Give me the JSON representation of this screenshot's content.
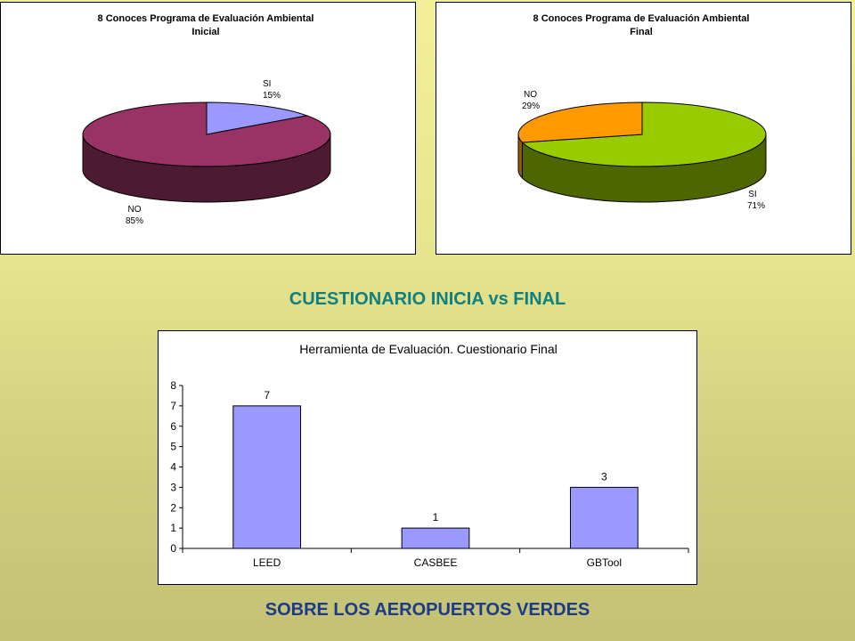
{
  "headings": {
    "middle": "CUESTIONARIO INICIA vs FINAL",
    "bottom": "SOBRE LOS AEROPUERTOS VERDES"
  },
  "chart_data": [
    {
      "type": "pie",
      "title_lines": [
        "8 Conoces Programa de Evaluación Ambiental",
        "Inicial"
      ],
      "slices": [
        {
          "label": "SI",
          "value": 15,
          "pct_label": "15%",
          "color": "#9999ff",
          "side_color": "#6b6bb3"
        },
        {
          "label": "NO",
          "value": 85,
          "pct_label": "85%",
          "color": "#993366",
          "side_color": "#4d1a33"
        }
      ],
      "start_angle_deg": -90
    },
    {
      "type": "pie",
      "title_lines": [
        "8 Conoces Programa de Evaluación Ambiental",
        "Final"
      ],
      "slices": [
        {
          "label": "SI",
          "value": 71,
          "pct_label": "71%",
          "color": "#99cc00",
          "side_color": "#4d6600"
        },
        {
          "label": "NO",
          "value": 29,
          "pct_label": "29%",
          "color": "#ff9900",
          "side_color": "#995c00"
        }
      ],
      "start_angle_deg": -90
    },
    {
      "type": "bar",
      "title": "Herramienta de Evaluación. Cuestionario Final",
      "categories": [
        "LEED",
        "CASBEE",
        "GBTool"
      ],
      "values": [
        7,
        1,
        3
      ],
      "data_labels": [
        "7",
        "1",
        "3"
      ],
      "ylim": [
        0,
        8
      ],
      "yticks": [
        "0",
        "1",
        "2",
        "3",
        "4",
        "5",
        "6",
        "7",
        "8"
      ],
      "bar_color": "#9999ff",
      "grid": false,
      "xlabel": "",
      "ylabel": ""
    }
  ]
}
